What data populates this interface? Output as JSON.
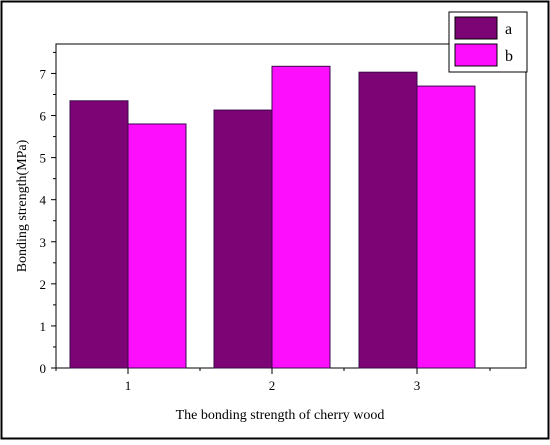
{
  "chart_data": {
    "type": "bar",
    "categories": [
      "1",
      "2",
      "3"
    ],
    "series": [
      {
        "name": "a",
        "values": [
          6.35,
          6.13,
          7.03
        ]
      },
      {
        "name": "b",
        "values": [
          5.8,
          7.17,
          6.7
        ]
      }
    ],
    "title": "",
    "xlabel": "The bonding strength of cherry wood",
    "ylabel": "Bonding strength(MPa)",
    "ylim": [
      0,
      7.7
    ],
    "yticks": [
      0,
      1,
      2,
      3,
      4,
      5,
      6,
      7
    ],
    "grid": false,
    "legend_position": "top-right",
    "colors": {
      "a": "#7c0475",
      "b": "#fd0ffd",
      "edge": "#3a0a4a"
    }
  }
}
